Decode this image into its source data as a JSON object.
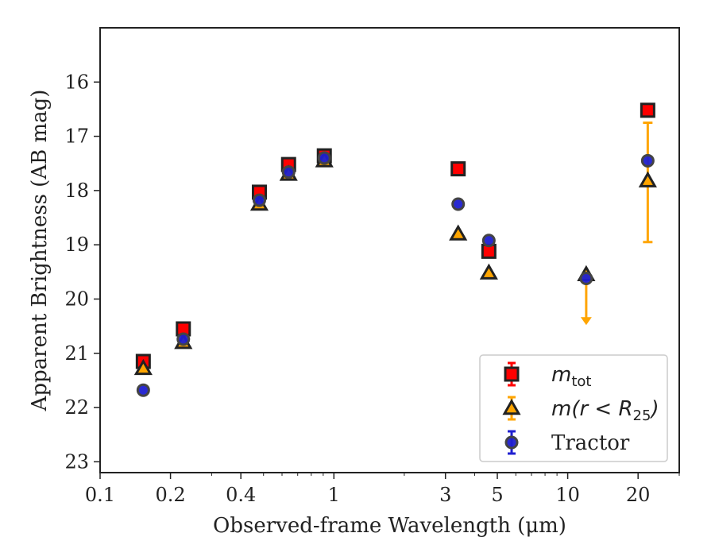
{
  "chart_data": {
    "type": "scatter",
    "xlabel": "Observed-frame Wavelength (μm)",
    "ylabel": "Apparent Brightness (AB mag)",
    "x_scale": "log",
    "xlim": [
      0.1,
      30
    ],
    "ylim": [
      23.2,
      15.0
    ],
    "y_inverted": true,
    "grid": false,
    "legend_position": "bottom-right",
    "x_ticks": [
      0.1,
      0.2,
      0.4,
      1,
      3,
      5,
      10,
      20
    ],
    "x_tick_labels": [
      "0.1",
      "0.2",
      "0.4",
      "1",
      "3",
      "5",
      "10",
      "20"
    ],
    "y_ticks": [
      16,
      17,
      18,
      19,
      20,
      21,
      22,
      23
    ],
    "y_tick_labels": [
      "16",
      "17",
      "18",
      "19",
      "20",
      "21",
      "22",
      "23"
    ],
    "series": [
      {
        "name": "m_tot",
        "legend_label_base": "m",
        "legend_label_sub": "tot",
        "marker": "square",
        "color": "#ff0000",
        "edge": "#222222",
        "points": [
          {
            "x": 0.153,
            "y": 21.15
          },
          {
            "x": 0.227,
            "y": 20.55
          },
          {
            "x": 0.48,
            "y": 18.03
          },
          {
            "x": 0.64,
            "y": 17.52
          },
          {
            "x": 0.91,
            "y": 17.36
          },
          {
            "x": 3.4,
            "y": 17.6
          },
          {
            "x": 4.6,
            "y": 19.12
          },
          {
            "x": 22,
            "y": 16.52
          }
        ]
      },
      {
        "name": "m(r < R25)",
        "legend_label_base": "m(r < R",
        "legend_label_sub": "25",
        "legend_label_end": ")",
        "marker": "triangle",
        "color": "#ffa500",
        "edge": "#222222",
        "points": [
          {
            "x": 0.153,
            "y": 21.28
          },
          {
            "x": 0.227,
            "y": 20.8
          },
          {
            "x": 0.48,
            "y": 18.25
          },
          {
            "x": 0.64,
            "y": 17.7
          },
          {
            "x": 0.91,
            "y": 17.45
          },
          {
            "x": 3.4,
            "y": 18.8
          },
          {
            "x": 4.6,
            "y": 19.52
          },
          {
            "x": 12,
            "y": 19.55
          },
          {
            "x": 22,
            "y": 17.82,
            "err_low": 16.75,
            "err_high": 18.95
          }
        ],
        "upper_limit": {
          "x": 12,
          "y_from": 19.55,
          "y_to": 20.45
        }
      },
      {
        "name": "Tractor",
        "marker": "circle",
        "color": "#1f1fd0",
        "edge": "#444444",
        "points": [
          {
            "x": 0.153,
            "y": 21.68
          },
          {
            "x": 0.227,
            "y": 20.74
          },
          {
            "x": 0.48,
            "y": 18.18
          },
          {
            "x": 0.64,
            "y": 17.66
          },
          {
            "x": 0.91,
            "y": 17.4
          },
          {
            "x": 3.4,
            "y": 18.25
          },
          {
            "x": 4.6,
            "y": 18.92
          },
          {
            "x": 12,
            "y": 19.62
          },
          {
            "x": 22,
            "y": 17.45
          }
        ]
      }
    ]
  }
}
